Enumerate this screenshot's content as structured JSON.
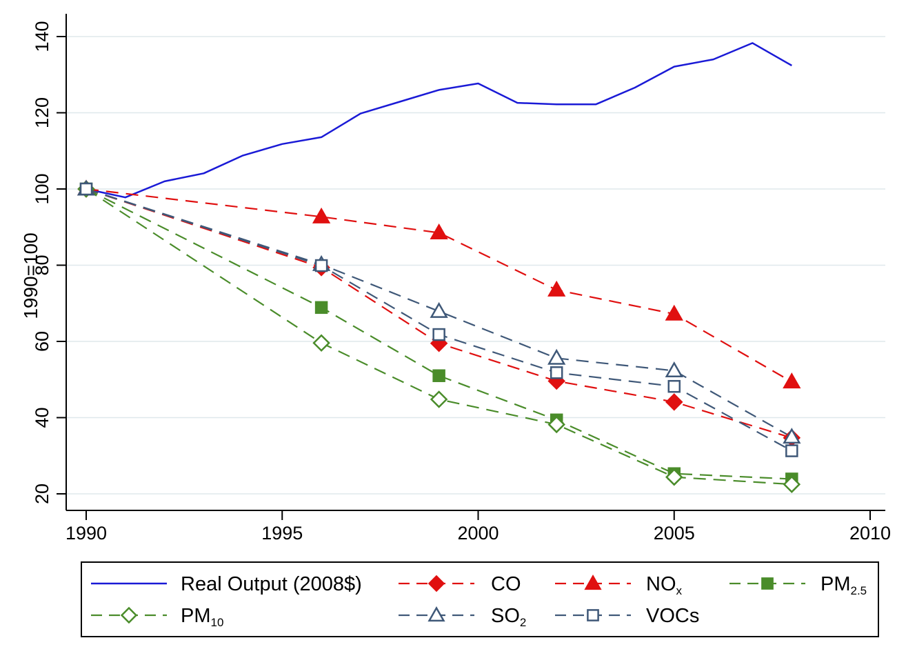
{
  "chart_data": {
    "type": "line",
    "ylabel": "1990=100",
    "xlabel": "",
    "xlim": [
      1990,
      2010
    ],
    "ylim": [
      20,
      140
    ],
    "x_ticks": [
      "1990",
      "1995",
      "2000",
      "2005",
      "2010"
    ],
    "y_ticks": [
      "20",
      "40",
      "60",
      "80",
      "100",
      "120",
      "140"
    ],
    "grid": "horizontal",
    "legend_position": "bottom",
    "series": [
      {
        "name": "Real Output (2008$)",
        "legend_main": "Real Output (2008$)",
        "legend_sub": "",
        "color": "#1a1ad6",
        "dash": "solid",
        "marker": "none",
        "x": [
          1990,
          1991,
          1992,
          1993,
          1994,
          1995,
          1996,
          1997,
          1998,
          1999,
          2000,
          2001,
          2002,
          2003,
          2004,
          2005,
          2006,
          2007,
          2008
        ],
        "values": [
          100,
          97.8,
          102,
          104.1,
          108.8,
          111.8,
          113.6,
          119.8,
          122.9,
          126,
          127.7,
          122.6,
          122.2,
          122.2,
          126.6,
          132.1,
          134,
          138.3,
          132.4
        ]
      },
      {
        "name": "CO",
        "legend_main": "CO",
        "legend_sub": "",
        "color": "#e01010",
        "dash": "dashed",
        "marker": "diamond-filled",
        "x": [
          1990,
          1996,
          1999,
          2002,
          2005,
          2008
        ],
        "values": [
          100,
          79.4,
          59.5,
          49.6,
          44.1,
          34.7
        ]
      },
      {
        "name": "NOx",
        "legend_main": "NO",
        "legend_sub": "x",
        "color": "#e01010",
        "dash": "dashed",
        "marker": "triangle-filled",
        "x": [
          1990,
          1996,
          1999,
          2002,
          2005,
          2008
        ],
        "values": [
          100,
          92.7,
          88.5,
          73.5,
          67.2,
          49.4
        ]
      },
      {
        "name": "PM2.5",
        "legend_main": "PM",
        "legend_sub": "2.5",
        "color": "#4a8c2a",
        "dash": "dashed",
        "marker": "square-filled",
        "x": [
          1990,
          1996,
          1999,
          2002,
          2005,
          2008
        ],
        "values": [
          100,
          68.9,
          51,
          39.4,
          25.3,
          23.9
        ]
      },
      {
        "name": "PM10",
        "legend_main": "PM",
        "legend_sub": "10",
        "color": "#4a8c2a",
        "dash": "dashed",
        "marker": "diamond-hollow",
        "x": [
          1990,
          1996,
          1999,
          2002,
          2005,
          2008
        ],
        "values": [
          100,
          59.6,
          44.8,
          38.2,
          24.4,
          22.5
        ]
      },
      {
        "name": "SO2",
        "legend_main": "SO",
        "legend_sub": "2",
        "color": "#3f5878",
        "dash": "dashed",
        "marker": "triangle-hollow",
        "x": [
          1990,
          1996,
          1999,
          2002,
          2005,
          2008
        ],
        "values": [
          100,
          80.2,
          67.9,
          55.6,
          52.3,
          34.9
        ]
      },
      {
        "name": "VOCs",
        "legend_main": "VOCs",
        "legend_sub": "",
        "color": "#3f5878",
        "dash": "dashed",
        "marker": "square-hollow",
        "x": [
          1990,
          1996,
          1999,
          2002,
          2005,
          2008
        ],
        "values": [
          100,
          79.9,
          61.8,
          51.8,
          48.2,
          31.3
        ]
      }
    ]
  }
}
